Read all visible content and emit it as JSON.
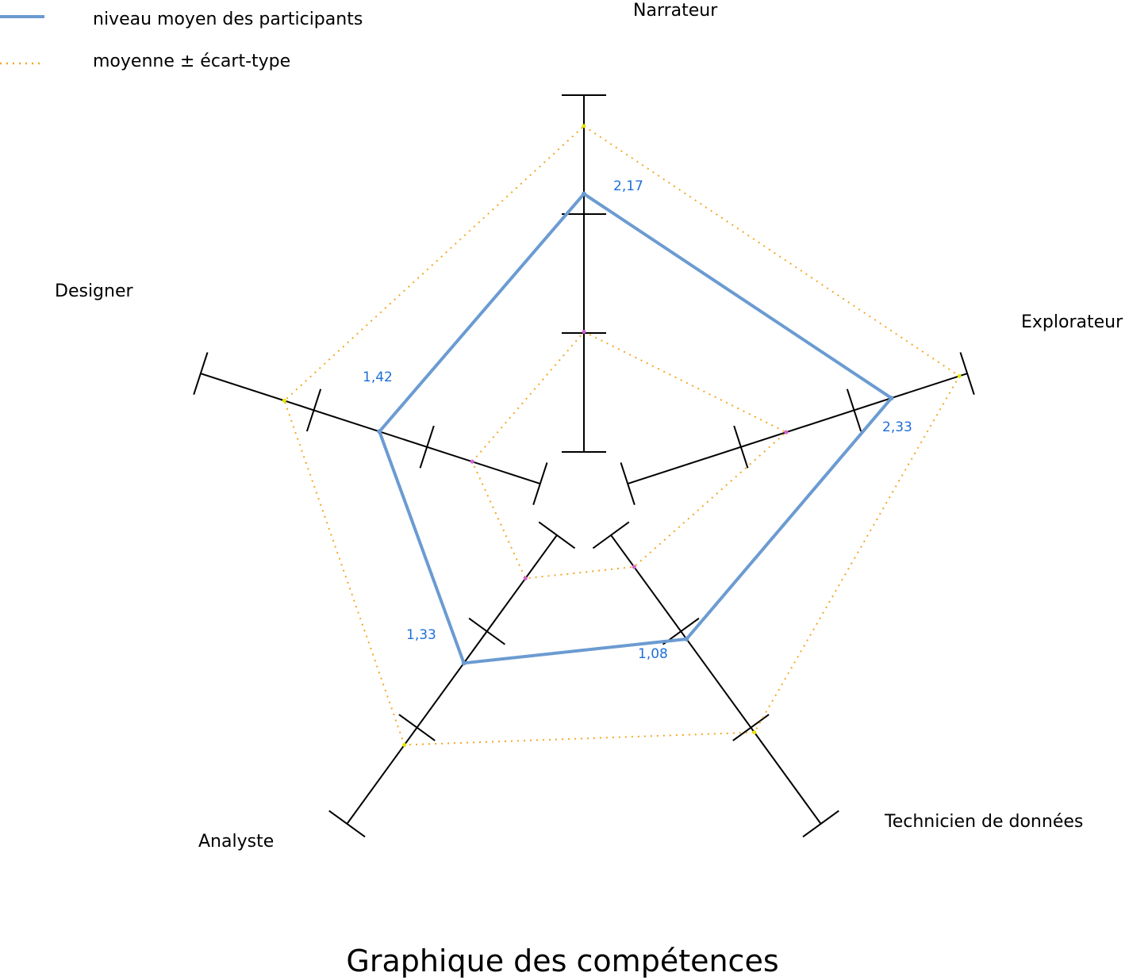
{
  "legend": {
    "mean_label": "niveau moyen des participants",
    "std_label": "moyenne ± écart-type"
  },
  "colors": {
    "mean_line": "#6b9bd1",
    "std_line": "#f5a623",
    "axis": "#000000",
    "value_text": "#1f6fd8",
    "upper_marker": "#e5e500",
    "lower_marker": "#d05fd0"
  },
  "chart_data": {
    "type": "radar",
    "title": "Graphique des compétences",
    "axes": [
      "Narrateur",
      "Explorateur",
      "Technicien de données",
      "Analyste",
      "Designer"
    ],
    "range": [
      0,
      3
    ],
    "ticks": [
      0,
      1,
      2,
      3
    ],
    "series": [
      {
        "name": "niveau moyen des participants",
        "values": [
          2.17,
          2.33,
          1.08,
          1.33,
          1.42
        ],
        "value_labels": [
          "2,17",
          "2,33",
          "1,08",
          "1,33",
          "1,42"
        ],
        "style": "solid"
      },
      {
        "name": "moyenne ± écart-type",
        "upper": [
          2.74,
          2.93,
          2.05,
          2.18,
          2.26
        ],
        "lower": [
          1.01,
          1.4,
          0.33,
          0.45,
          0.6
        ],
        "style": "dotted"
      }
    ],
    "legend_position": "top-left"
  }
}
